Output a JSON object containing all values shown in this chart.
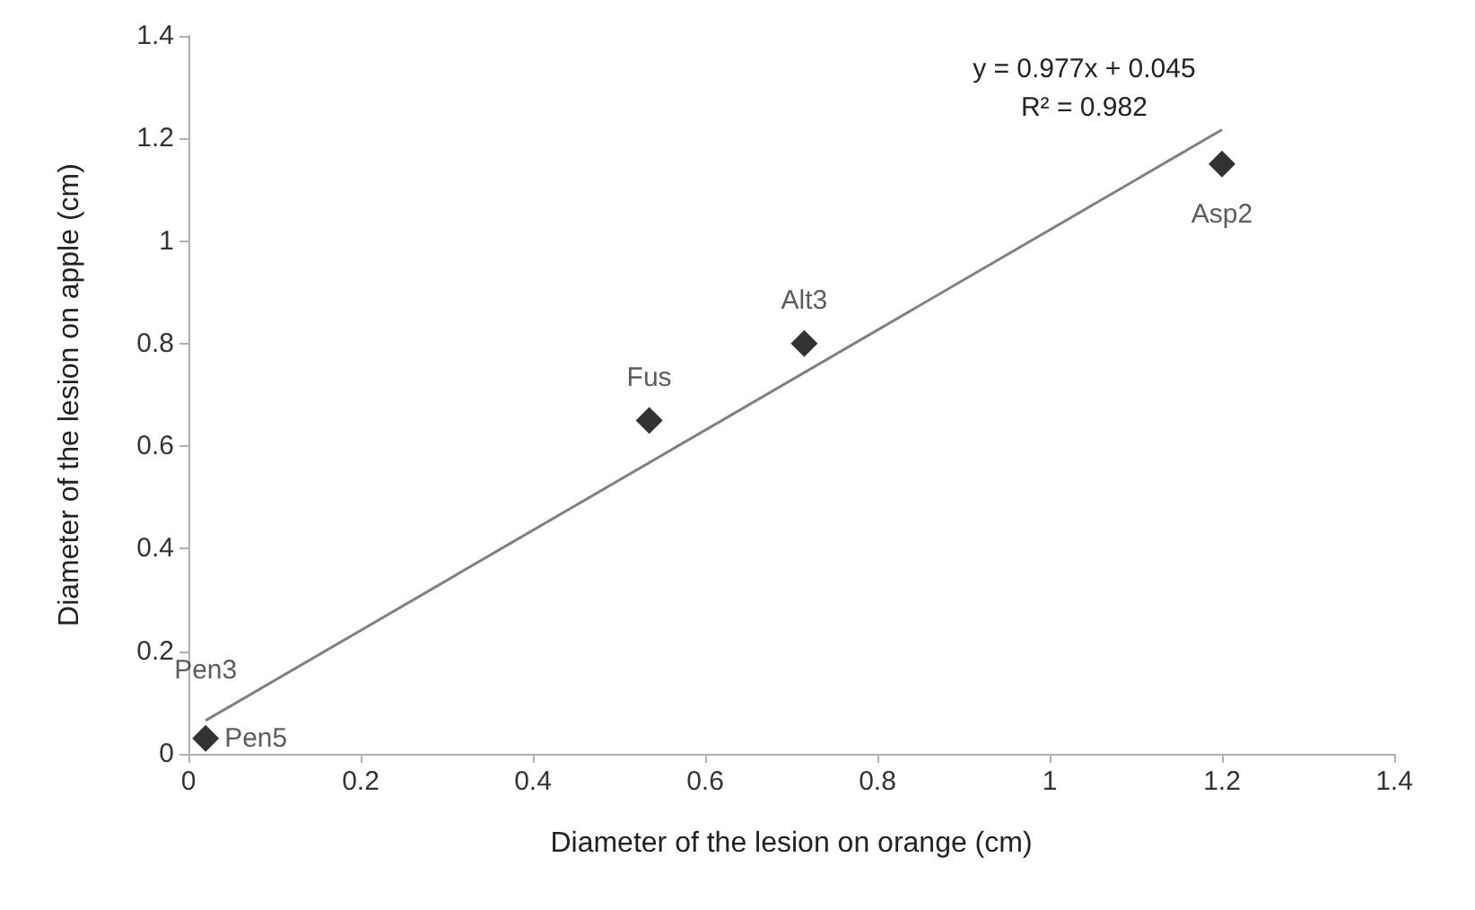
{
  "chart_data": {
    "type": "scatter",
    "xlabel": "Diameter of the lesion on orange (cm)",
    "ylabel": "Diameter of the lesion on apple (cm)",
    "series": [
      {
        "color": "#000000",
        "marker": "diamond",
        "x": [
          0.02,
          0.535,
          0.715,
          1.2
        ],
        "values": [
          0.03,
          0.65,
          0.8,
          1.15
        ]
      },
      {
        "type": "line",
        "color": "#808080",
        "marker": "none",
        "x": [
          0.02,
          1.2
        ],
        "values": [
          0.065,
          1.217
        ]
      }
    ],
    "annotations": [
      {
        "text": "Pen3",
        "x": 0.02,
        "y": 0.03
      },
      {
        "text": "Pen5",
        "x": 0.02,
        "y": 0.03
      },
      {
        "text": "Fus",
        "x": 0.535,
        "y": 0.65
      },
      {
        "text": "Alt3",
        "x": 0.715,
        "y": 0.8
      },
      {
        "text": "Asp2",
        "x": 1.2,
        "y": 1.15
      },
      "y = 0.977x + 0.045",
      "R² = 0.982"
    ],
    "xlim": [
      0,
      1.4
    ],
    "xticks": [
      0,
      0.2,
      0.4,
      0.6,
      0.8,
      1,
      1.2,
      1.4
    ],
    "ylim": [
      0,
      1.4
    ],
    "yticks": [
      0,
      0.2,
      0.4,
      0.6,
      0.8,
      1,
      1.2,
      1.4
    ],
    "grid": false
  }
}
